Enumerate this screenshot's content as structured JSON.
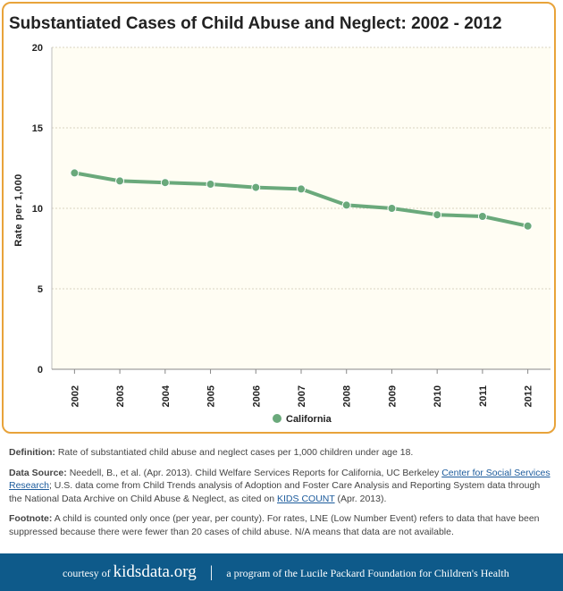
{
  "chart_data": {
    "type": "line",
    "title": "Substantiated Cases of Child Abuse and Neglect: 2002 - 2012",
    "xlabel": "",
    "ylabel": "Rate per 1,000",
    "categories": [
      "2002",
      "2003",
      "2004",
      "2005",
      "2006",
      "2007",
      "2008",
      "2009",
      "2010",
      "2011",
      "2012"
    ],
    "series": [
      {
        "name": "California",
        "values": [
          12.2,
          11.7,
          11.6,
          11.5,
          11.3,
          11.2,
          10.2,
          10.0,
          9.6,
          9.5,
          8.9
        ]
      }
    ],
    "ylim": [
      0,
      20
    ],
    "yticks": [
      "0",
      "5",
      "10",
      "15",
      "20"
    ],
    "grid": true,
    "legend": "bottom-center",
    "colors": {
      "line": "#6aa97b",
      "plot_bg": "#fffdf3",
      "grid": "#d8d4c2"
    }
  },
  "info": {
    "definition_label": "Definition:",
    "definition_text": " Rate of substantiated child abuse and neglect cases per 1,000 children under age 18.",
    "source_label": "Data Source:",
    "source_text_1": " Needell, B., et al. (Apr. 2013). Child Welfare Services Reports for California, UC Berkeley ",
    "source_link_1": "Center for Social Services Research",
    "source_text_2": "; U.S. data come from Child Trends analysis of Adoption and Foster Care Analysis and Reporting System data through the National Data Archive on Child Abuse & Neglect, as cited on ",
    "source_link_2": "KIDS COUNT",
    "source_text_3": " (Apr. 2013).",
    "footnote_label": "Footnote:",
    "footnote_text": " A child is counted only once (per year, per county). For rates, LNE (Low Number Event) refers to data that have been suppressed because there were fewer than 20 cases of child abuse. N/A means that data are not available."
  },
  "footer": {
    "courtesy": "courtesy of",
    "brand": "kidsdata.org",
    "separator": "|",
    "tagline": "a program of the Lucile Packard Foundation for Children's Health"
  }
}
